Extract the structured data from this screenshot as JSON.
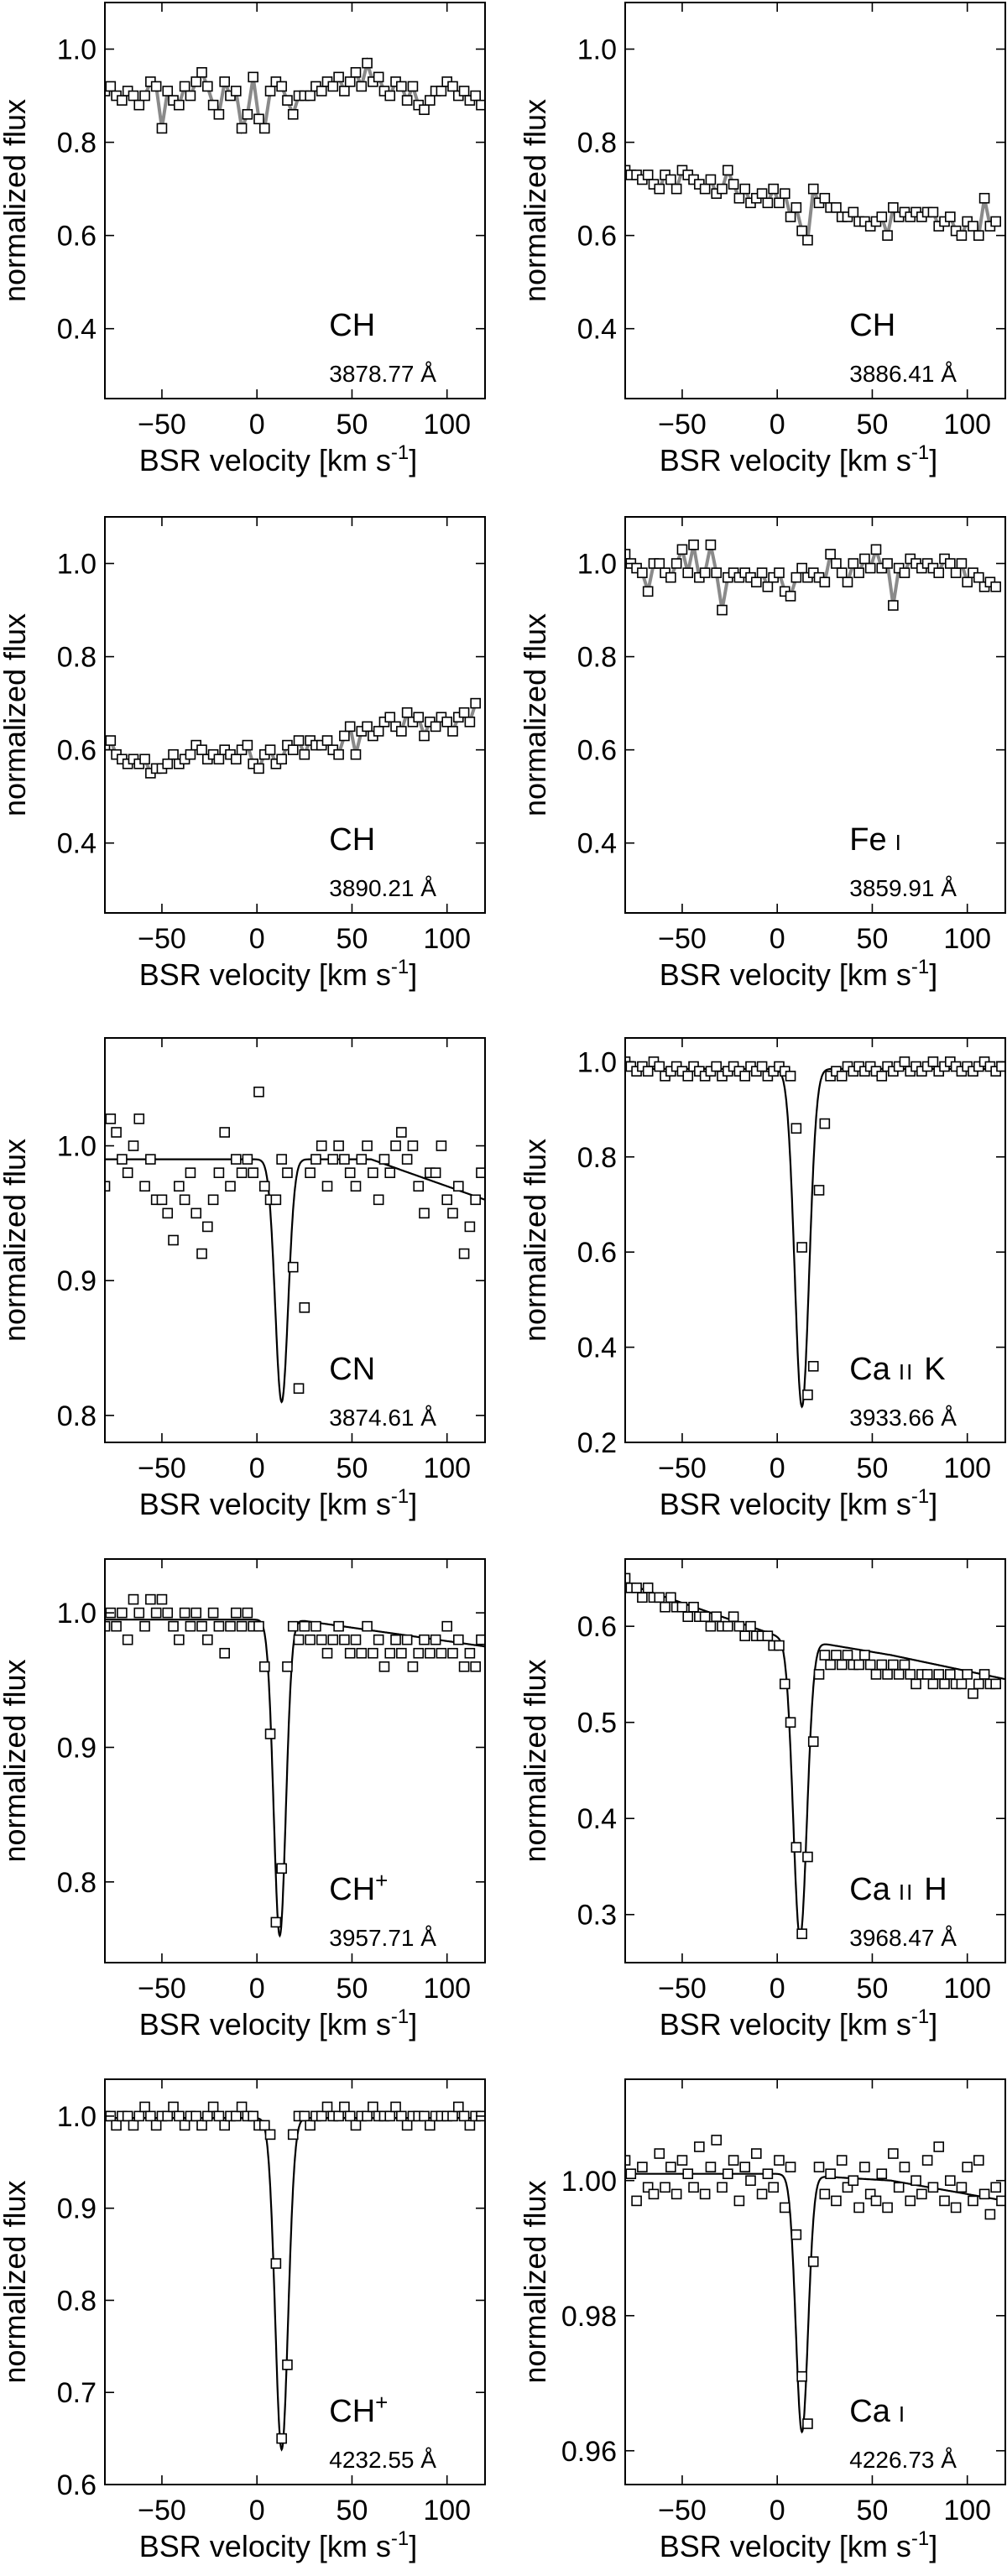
{
  "figure": {
    "xlabel_main": "BSR velocity [km s",
    "xlabel_sup": "-1",
    "xlabel_close": "]",
    "ylabel": "normalized flux"
  },
  "chart_data": [
    {
      "type": "scatter",
      "species": "CH",
      "species_sup": "",
      "wavelength": "3878.77 Å",
      "xlim": [
        -80,
        120
      ],
      "ylim": [
        0.25,
        1.1
      ],
      "xticks": [
        -50,
        0,
        50,
        100
      ],
      "yticks": [
        0.4,
        0.6,
        0.8,
        1.0
      ],
      "xtick_labels": [
        "−50",
        "0",
        "50",
        "100"
      ],
      "ytick_labels": [
        "0.4",
        "0.6",
        "0.8",
        "1.0"
      ],
      "fit": false,
      "gray_mask": true,
      "points": {
        "x_start": -80,
        "x_step": 3.0,
        "y": [
          0.91,
          0.92,
          0.9,
          0.89,
          0.91,
          0.9,
          0.88,
          0.9,
          0.93,
          0.92,
          0.83,
          0.91,
          0.89,
          0.88,
          0.92,
          0.9,
          0.93,
          0.95,
          0.92,
          0.88,
          0.86,
          0.93,
          0.9,
          0.91,
          0.83,
          0.86,
          0.94,
          0.85,
          0.83,
          0.91,
          0.93,
          0.92,
          0.89,
          0.86,
          0.9,
          0.9,
          0.9,
          0.92,
          0.91,
          0.93,
          0.92,
          0.94,
          0.91,
          0.93,
          0.95,
          0.92,
          0.97,
          0.93,
          0.94,
          0.91,
          0.9,
          0.93,
          0.92,
          0.89,
          0.92,
          0.88,
          0.87,
          0.89,
          0.91,
          0.91,
          0.93,
          0.92,
          0.9,
          0.91,
          0.89,
          0.9,
          0.88
        ]
      }
    },
    {
      "type": "scatter",
      "species": "CH",
      "species_sup": "",
      "wavelength": "3886.41 Å",
      "xlim": [
        -80,
        120
      ],
      "ylim": [
        0.25,
        1.1
      ],
      "xticks": [
        -50,
        0,
        50,
        100
      ],
      "yticks": [
        0.4,
        0.6,
        0.8,
        1.0
      ],
      "xtick_labels": [
        "−50",
        "0",
        "50",
        "100"
      ],
      "ytick_labels": [
        "0.4",
        "0.6",
        "0.8",
        "1.0"
      ],
      "fit": false,
      "gray_mask": true,
      "points": {
        "x_start": -80,
        "x_step": 3.0,
        "y": [
          0.74,
          0.73,
          0.73,
          0.72,
          0.73,
          0.71,
          0.7,
          0.73,
          0.72,
          0.7,
          0.74,
          0.73,
          0.72,
          0.71,
          0.7,
          0.72,
          0.69,
          0.7,
          0.74,
          0.71,
          0.68,
          0.7,
          0.67,
          0.68,
          0.69,
          0.67,
          0.7,
          0.67,
          0.69,
          0.64,
          0.66,
          0.61,
          0.59,
          0.7,
          0.67,
          0.68,
          0.66,
          0.66,
          0.64,
          0.64,
          0.65,
          0.63,
          0.63,
          0.62,
          0.63,
          0.64,
          0.6,
          0.66,
          0.64,
          0.65,
          0.64,
          0.65,
          0.64,
          0.65,
          0.65,
          0.62,
          0.63,
          0.64,
          0.61,
          0.6,
          0.63,
          0.62,
          0.6,
          0.68,
          0.62,
          0.63
        ]
      }
    },
    {
      "type": "scatter",
      "species": "CH",
      "species_sup": "",
      "wavelength": "3890.21 Å",
      "xlim": [
        -80,
        120
      ],
      "ylim": [
        0.25,
        1.1
      ],
      "xticks": [
        -50,
        0,
        50,
        100
      ],
      "yticks": [
        0.4,
        0.6,
        0.8,
        1.0
      ],
      "xtick_labels": [
        "−50",
        "0",
        "50",
        "100"
      ],
      "ytick_labels": [
        "0.4",
        "0.6",
        "0.8",
        "1.0"
      ],
      "fit": false,
      "gray_mask": true,
      "points": {
        "x_start": -80,
        "x_step": 3.0,
        "y": [
          0.61,
          0.62,
          0.59,
          0.58,
          0.57,
          0.58,
          0.57,
          0.58,
          0.55,
          0.56,
          0.56,
          0.57,
          0.59,
          0.57,
          0.58,
          0.59,
          0.61,
          0.6,
          0.58,
          0.59,
          0.58,
          0.6,
          0.59,
          0.58,
          0.6,
          0.61,
          0.57,
          0.56,
          0.59,
          0.6,
          0.57,
          0.58,
          0.61,
          0.6,
          0.62,
          0.59,
          0.62,
          0.61,
          0.61,
          0.62,
          0.6,
          0.59,
          0.63,
          0.65,
          0.59,
          0.64,
          0.65,
          0.63,
          0.64,
          0.66,
          0.67,
          0.65,
          0.64,
          0.68,
          0.66,
          0.67,
          0.63,
          0.66,
          0.65,
          0.67,
          0.66,
          0.64,
          0.67,
          0.68,
          0.66,
          0.7
        ]
      }
    },
    {
      "type": "scatter",
      "species": "Fe",
      "species_sup": "",
      "species_ion": "I",
      "wavelength": "3859.91 Å",
      "xlim": [
        -80,
        120
      ],
      "ylim": [
        0.25,
        1.1
      ],
      "xticks": [
        -50,
        0,
        50,
        100
      ],
      "yticks": [
        0.4,
        0.6,
        0.8,
        1.0
      ],
      "xtick_labels": [
        "−50",
        "0",
        "50",
        "100"
      ],
      "ytick_labels": [
        "0.4",
        "0.6",
        "0.8",
        "1.0"
      ],
      "fit": false,
      "gray_mask": true,
      "points": {
        "x_start": -80,
        "x_step": 3.0,
        "y": [
          1.02,
          1.0,
          0.99,
          0.98,
          0.94,
          1.0,
          1.0,
          0.98,
          0.97,
          1.0,
          1.03,
          0.98,
          1.04,
          0.97,
          0.98,
          1.04,
          0.98,
          0.9,
          0.97,
          0.98,
          0.97,
          0.98,
          0.97,
          0.96,
          0.98,
          0.95,
          0.97,
          0.98,
          0.94,
          0.93,
          0.97,
          0.99,
          0.97,
          0.98,
          0.97,
          0.96,
          1.02,
          1.0,
          0.98,
          0.96,
          1.0,
          0.98,
          1.01,
          0.99,
          1.03,
          0.99,
          1.0,
          0.91,
          0.99,
          0.98,
          1.01,
          1.0,
          0.99,
          1.0,
          0.99,
          0.98,
          1.01,
          1.0,
          0.98,
          1.0,
          0.96,
          0.98,
          0.97,
          0.95,
          0.96,
          0.95
        ]
      }
    },
    {
      "type": "scatter",
      "species": "CN",
      "species_sup": "",
      "wavelength": "3874.61 Å",
      "xlim": [
        -80,
        120
      ],
      "ylim": [
        0.78,
        1.08
      ],
      "xticks": [
        -50,
        0,
        50,
        100
      ],
      "yticks": [
        0.8,
        0.9,
        1.0
      ],
      "xtick_labels": [
        "−50",
        "0",
        "50",
        "100"
      ],
      "ytick_labels": [
        "0.8",
        "0.9",
        "1.0"
      ],
      "fit": true,
      "fit_model": {
        "baseline": 0.99,
        "slope_start": 60,
        "slope_end_value": 0.96,
        "center": 13,
        "depth": 0.18,
        "sigma": 3.4
      },
      "points": {
        "x_start": -80,
        "x_step": 3.0,
        "y": [
          0.97,
          1.02,
          1.01,
          0.99,
          0.98,
          1.0,
          1.02,
          0.97,
          0.99,
          0.96,
          0.96,
          0.95,
          0.93,
          0.97,
          0.96,
          0.98,
          0.95,
          0.92,
          0.94,
          0.96,
          0.98,
          1.01,
          0.97,
          0.99,
          0.98,
          0.99,
          0.98,
          1.04,
          0.97,
          0.96,
          0.96,
          0.99,
          0.98,
          0.91,
          0.82,
          0.88,
          0.98,
          0.99,
          1.0,
          0.97,
          0.99,
          1.0,
          0.99,
          0.98,
          0.97,
          0.99,
          1.0,
          0.98,
          0.96,
          0.99,
          0.98,
          1.0,
          1.01,
          0.99,
          1.0,
          0.97,
          0.95,
          0.98,
          0.98,
          1.0,
          0.96,
          0.95,
          0.97,
          0.92,
          0.94,
          0.96,
          0.98
        ]
      }
    },
    {
      "type": "scatter",
      "species": "Ca",
      "species_sup": "",
      "species_ion": "II",
      "species_suffix": "K",
      "wavelength": "3933.66 Å",
      "xlim": [
        -80,
        120
      ],
      "ylim": [
        0.2,
        1.05
      ],
      "xticks": [
        -50,
        0,
        50,
        100
      ],
      "yticks": [
        0.2,
        0.4,
        0.6,
        0.8,
        1.0
      ],
      "xtick_labels": [
        "−50",
        "0",
        "50",
        "100"
      ],
      "ytick_labels": [
        "0.2",
        "0.4",
        "0.6",
        "0.8",
        "1.0"
      ],
      "fit": true,
      "fit_model": {
        "baseline": 0.985,
        "slope_start": 9999,
        "slope_end_value": 0.985,
        "center": 13,
        "depth": 0.71,
        "sigma": 3.8
      },
      "points": {
        "x_start": -80,
        "x_step": 3.0,
        "y": [
          1.0,
          0.99,
          0.98,
          0.99,
          0.98,
          1.0,
          0.99,
          0.97,
          0.98,
          0.99,
          0.98,
          0.97,
          0.99,
          0.98,
          0.97,
          0.98,
          0.99,
          0.97,
          0.98,
          0.99,
          0.98,
          0.97,
          0.99,
          0.98,
          0.99,
          0.97,
          0.98,
          0.99,
          0.98,
          0.97,
          0.86,
          0.61,
          0.3,
          0.36,
          0.73,
          0.87,
          0.97,
          0.98,
          0.97,
          0.99,
          0.98,
          0.99,
          0.98,
          0.99,
          0.98,
          0.97,
          0.99,
          0.98,
          0.99,
          1.0,
          0.98,
          0.99,
          0.98,
          0.99,
          1.0,
          0.98,
          0.99,
          1.0,
          0.99,
          0.98,
          0.99,
          0.98,
          0.99,
          1.0,
          0.99,
          0.98,
          0.99
        ]
      }
    },
    {
      "type": "scatter",
      "species": "CH",
      "species_sup": "+",
      "wavelength": "3957.71 Å",
      "xlim": [
        -80,
        120
      ],
      "ylim": [
        0.74,
        1.04
      ],
      "xticks": [
        -50,
        0,
        50,
        100
      ],
      "yticks": [
        0.8,
        0.9,
        1.0
      ],
      "xtick_labels": [
        "−50",
        "0",
        "50",
        "100"
      ],
      "ytick_labels": [
        "0.8",
        "0.9",
        "1.0"
      ],
      "fit": true,
      "fit_model": {
        "baseline": 0.995,
        "slope_start": 20,
        "slope_end_value": 0.975,
        "center": 12,
        "depth": 0.235,
        "sigma": 3.2
      },
      "points": {
        "x_start": -80,
        "x_step": 3.0,
        "y": [
          0.99,
          1.0,
          0.99,
          1.0,
          0.98,
          1.01,
          1.0,
          0.99,
          1.01,
          1.0,
          1.01,
          1.0,
          0.99,
          0.98,
          1.0,
          0.99,
          1.0,
          0.99,
          0.98,
          1.0,
          0.99,
          0.97,
          0.99,
          1.0,
          0.99,
          1.0,
          0.99,
          0.99,
          0.96,
          0.91,
          0.77,
          0.81,
          0.96,
          0.99,
          0.98,
          0.99,
          0.98,
          0.99,
          0.98,
          0.97,
          0.98,
          0.99,
          0.98,
          0.97,
          0.98,
          0.97,
          0.99,
          0.97,
          0.98,
          0.96,
          0.97,
          0.98,
          0.97,
          0.98,
          0.96,
          0.97,
          0.98,
          0.97,
          0.98,
          0.97,
          0.99,
          0.97,
          0.98,
          0.96,
          0.97,
          0.96,
          0.98
        ]
      }
    },
    {
      "type": "scatter",
      "species": "Ca",
      "species_sup": "",
      "species_ion": "II",
      "species_suffix": "H",
      "wavelength": "3968.47 Å",
      "xlim": [
        -80,
        120
      ],
      "ylim": [
        0.25,
        0.67
      ],
      "xticks": [
        -50,
        0,
        50,
        100
      ],
      "yticks": [
        0.3,
        0.4,
        0.5,
        0.6
      ],
      "xtick_labels": [
        "−50",
        "0",
        "50",
        "100"
      ],
      "ytick_labels": [
        "0.3",
        "0.4",
        "0.5",
        "0.6"
      ],
      "fit": true,
      "fit_model": {
        "baseline_line": [
          0.645,
          0.59,
          0.57,
          0.545
        ],
        "center": 12,
        "depth": 0.31,
        "sigma": 3.6
      },
      "points": {
        "x_start": -80,
        "x_step": 3.0,
        "y": [
          0.65,
          0.64,
          0.64,
          0.63,
          0.64,
          0.63,
          0.63,
          0.62,
          0.63,
          0.62,
          0.62,
          0.61,
          0.62,
          0.61,
          0.61,
          0.6,
          0.61,
          0.6,
          0.6,
          0.61,
          0.6,
          0.59,
          0.6,
          0.59,
          0.59,
          0.59,
          0.58,
          0.58,
          0.54,
          0.5,
          0.37,
          0.28,
          0.36,
          0.48,
          0.55,
          0.57,
          0.56,
          0.57,
          0.56,
          0.57,
          0.56,
          0.56,
          0.57,
          0.56,
          0.55,
          0.56,
          0.55,
          0.56,
          0.55,
          0.56,
          0.55,
          0.54,
          0.55,
          0.55,
          0.54,
          0.55,
          0.54,
          0.55,
          0.54,
          0.54,
          0.55,
          0.53,
          0.54,
          0.55,
          0.54,
          0.54
        ]
      }
    },
    {
      "type": "scatter",
      "species": "CH",
      "species_sup": "+",
      "wavelength": "4232.55 Å",
      "xlim": [
        -80,
        120
      ],
      "ylim": [
        0.6,
        1.04
      ],
      "xticks": [
        -50,
        0,
        50,
        100
      ],
      "yticks": [
        0.6,
        0.7,
        0.8,
        0.9,
        1.0
      ],
      "xtick_labels": [
        "−50",
        "0",
        "50",
        "100"
      ],
      "ytick_labels": [
        "0.6",
        "0.7",
        "0.8",
        "0.9",
        "1.0"
      ],
      "fit": true,
      "fit_model": {
        "baseline": 0.998,
        "slope_start": 9999,
        "slope_end_value": 0.998,
        "center": 13,
        "depth": 0.36,
        "sigma": 3.4
      },
      "points": {
        "x_start": -80,
        "x_step": 3.0,
        "y": [
          1.0,
          1.0,
          0.99,
          1.0,
          1.0,
          0.99,
          1.0,
          1.01,
          1.0,
          0.99,
          1.0,
          1.0,
          1.01,
          1.0,
          0.99,
          1.0,
          1.0,
          0.99,
          1.0,
          1.01,
          1.0,
          0.99,
          1.0,
          1.0,
          1.01,
          1.0,
          1.0,
          0.99,
          0.99,
          0.98,
          0.84,
          0.65,
          0.73,
          0.98,
          1.0,
          1.0,
          0.99,
          1.0,
          1.0,
          1.01,
          1.0,
          1.0,
          1.01,
          1.0,
          0.99,
          1.0,
          1.0,
          1.01,
          1.0,
          1.0,
          1.0,
          1.01,
          1.0,
          0.99,
          1.0,
          1.0,
          1.0,
          0.99,
          1.0,
          1.0,
          1.0,
          1.0,
          1.01,
          1.0,
          0.99,
          1.0,
          1.0
        ]
      }
    },
    {
      "type": "scatter",
      "species": "Ca",
      "species_sup": "",
      "species_ion": "I",
      "wavelength": "4226.73 Å",
      "xlim": [
        -80,
        120
      ],
      "ylim": [
        0.955,
        1.015
      ],
      "xticks": [
        -50,
        0,
        50,
        100
      ],
      "yticks": [
        0.96,
        0.98,
        1.0
      ],
      "xtick_labels": [
        "−50",
        "0",
        "50",
        "100"
      ],
      "ytick_labels": [
        "0.96",
        "0.98",
        "1.00"
      ],
      "fit": true,
      "fit_model": {
        "baseline_line": [
          1.001,
          1.001,
          1.0,
          0.997
        ],
        "center": 13,
        "depth": 0.038,
        "sigma": 3.2
      },
      "points": {
        "x_start": -80,
        "x_step": 3.0,
        "y": [
          1.003,
          1.001,
          0.997,
          1.002,
          0.999,
          0.998,
          1.004,
          0.999,
          1.002,
          0.998,
          1.003,
          1.001,
          0.999,
          1.005,
          0.998,
          1.002,
          1.006,
          0.999,
          1.001,
          1.003,
          0.997,
          1.002,
          1.0,
          1.004,
          0.998,
          1.001,
          0.999,
          1.003,
          0.996,
          1.002,
          0.992,
          0.971,
          0.964,
          0.988,
          1.002,
          0.998,
          1.001,
          0.997,
          1.003,
          0.999,
          1.0,
          0.996,
          1.002,
          0.998,
          0.997,
          1.001,
          0.996,
          1.004,
          0.999,
          1.002,
          0.997,
          1.0,
          0.998,
          1.003,
          0.999,
          1.005,
          0.997,
          1.0,
          0.996,
          0.999,
          1.002,
          0.997,
          1.003,
          0.998,
          0.995,
          0.999,
          0.997
        ]
      }
    }
  ]
}
